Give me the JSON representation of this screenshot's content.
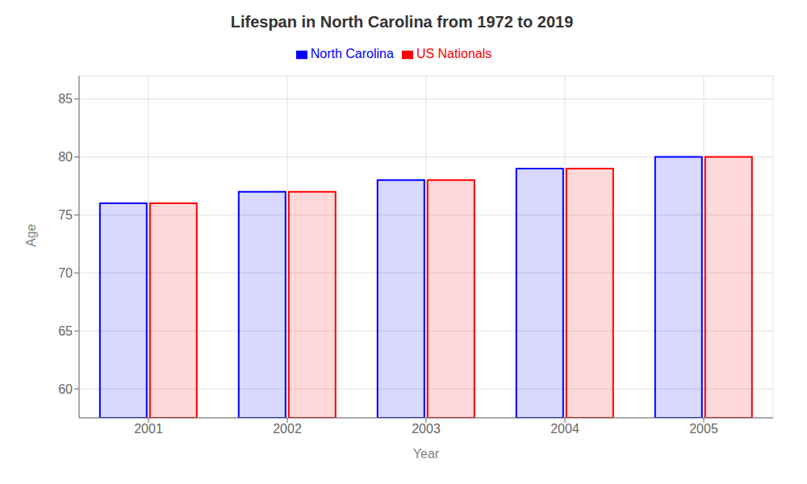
{
  "chart_data": {
    "type": "bar",
    "title": "Lifespan in North Carolina from 1972 to 2019",
    "x_label": "Year",
    "y_label": "Age",
    "categories": [
      "2001",
      "2002",
      "2003",
      "2004",
      "2005"
    ],
    "series": [
      {
        "name": "North Carolina",
        "color": "#0000ff",
        "values": [
          76.0,
          77.0,
          78.0,
          79.0,
          80.0
        ]
      },
      {
        "name": "US Nationals",
        "color": "#ff0000",
        "values": [
          76.0,
          77.0,
          78.0,
          79.0,
          80.0
        ]
      }
    ],
    "ylim": [
      57.5,
      87
    ],
    "yticks": [
      60,
      65,
      70,
      75,
      80,
      85
    ],
    "grid": true,
    "legend": "top"
  }
}
